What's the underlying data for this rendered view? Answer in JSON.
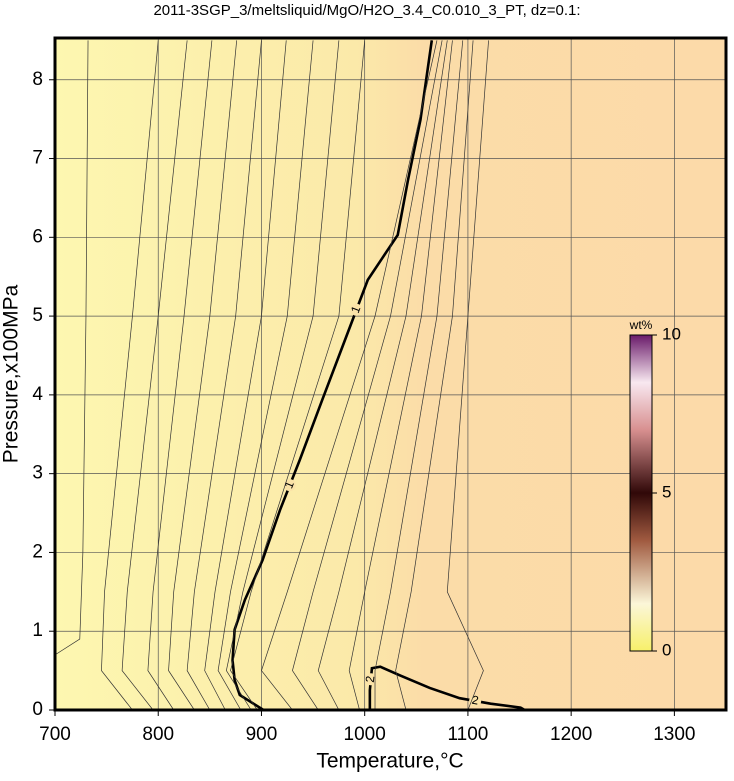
{
  "chart_data": {
    "type": "contour",
    "title": "2011-3SGP_3/meltsliquid/MgO/H2O_3.4_C0.010_3_PT, dz=0.1:",
    "xlabel": "Temperature,°C",
    "ylabel": "Pressure,x100MPa",
    "xlim": [
      700,
      1350
    ],
    "ylim": [
      0,
      8.53
    ],
    "xticks": [
      700,
      800,
      900,
      1000,
      1100,
      1200,
      1300
    ],
    "yticks": [
      0,
      1,
      2,
      3,
      4,
      5,
      6,
      7,
      8
    ],
    "grid": true,
    "contours": [
      {
        "level": 1,
        "x": [
          902,
          879,
          874,
          872,
          874,
          884,
          901,
          918,
          937,
          959,
          981,
          1003,
          1032,
          1042,
          1054,
          1065
        ],
        "y": [
          0,
          0.19,
          0.38,
          0.63,
          1.02,
          1.4,
          1.9,
          2.54,
          3.17,
          3.94,
          4.7,
          5.46,
          6.03,
          6.73,
          7.49,
          8.5
        ]
      },
      {
        "level": 2,
        "x": [
          1005,
          1005,
          1007,
          1015,
          1034,
          1063,
          1092,
          1122,
          1151,
          1155
        ],
        "y": [
          0,
          0.25,
          0.53,
          0.55,
          0.44,
          0.28,
          0.15,
          0.08,
          0.03,
          0
        ]
      },
      {
        "x": [
          700,
          724,
          727,
          730,
          732
        ],
        "y": [
          0.7,
          0.9,
          2,
          5,
          8.5
        ]
      },
      {
        "x": [
          775,
          745,
          748,
          775,
          800
        ],
        "y": [
          0,
          0.5,
          1.5,
          5,
          8.5
        ]
      },
      {
        "x": [
          795,
          765,
          770,
          800,
          828
        ],
        "y": [
          0,
          0.5,
          1.5,
          5,
          8.5
        ]
      },
      {
        "x": [
          815,
          790,
          795,
          825,
          852
        ],
        "y": [
          0,
          0.5,
          1.5,
          5,
          8.5
        ]
      },
      {
        "x": [
          835,
          810,
          815,
          850,
          876
        ],
        "y": [
          0,
          0.5,
          1.5,
          5,
          8.5
        ]
      },
      {
        "x": [
          850,
          828,
          835,
          875,
          900
        ],
        "y": [
          0,
          0.5,
          1.5,
          5,
          8.5
        ]
      },
      {
        "x": [
          865,
          845,
          855,
          900,
          924
        ],
        "y": [
          0,
          0.5,
          1.5,
          5,
          8.5
        ]
      },
      {
        "x": [
          880,
          858,
          870,
          925,
          950
        ],
        "y": [
          0,
          0.5,
          1.5,
          5,
          8.5
        ]
      },
      {
        "x": [
          890,
          866,
          882,
          950,
          975
        ],
        "y": [
          0,
          0.5,
          1.5,
          5,
          8.5
        ]
      },
      {
        "x": [
          896,
          870,
          890,
          975,
          1000
        ],
        "y": [
          0,
          0.5,
          1.5,
          5,
          8.5
        ]
      },
      {
        "x": [
          930,
          900,
          925,
          1010,
          1070
        ],
        "y": [
          0,
          0.5,
          1.5,
          5,
          8.5
        ]
      },
      {
        "x": [
          955,
          930,
          950,
          1025,
          1075
        ],
        "y": [
          0,
          0.5,
          1.5,
          5,
          8.5
        ]
      },
      {
        "x": [
          975,
          955,
          975,
          1040,
          1080
        ],
        "y": [
          0,
          0.5,
          1.5,
          5,
          8.5
        ]
      },
      {
        "x": [
          995,
          985,
          1000,
          1055,
          1085
        ],
        "y": [
          0,
          0.5,
          1.5,
          5,
          8.5
        ]
      },
      {
        "x": [
          1010,
          1010,
          1025,
          1070,
          1095
        ],
        "y": [
          0,
          0.5,
          1.5,
          5,
          8.5
        ]
      },
      {
        "x": [
          1040,
          1030,
          1045,
          1085,
          1105
        ],
        "y": [
          0,
          0.5,
          1.5,
          5,
          8.5
        ]
      },
      {
        "x": [
          1100,
          1115,
          1080,
          1100,
          1120
        ],
        "y": [
          0,
          0.5,
          1.5,
          5,
          8.5
        ]
      }
    ],
    "colorbar": {
      "label": "wt%",
      "lim": [
        0,
        10
      ],
      "ticks": [
        0,
        5,
        10
      ]
    }
  }
}
